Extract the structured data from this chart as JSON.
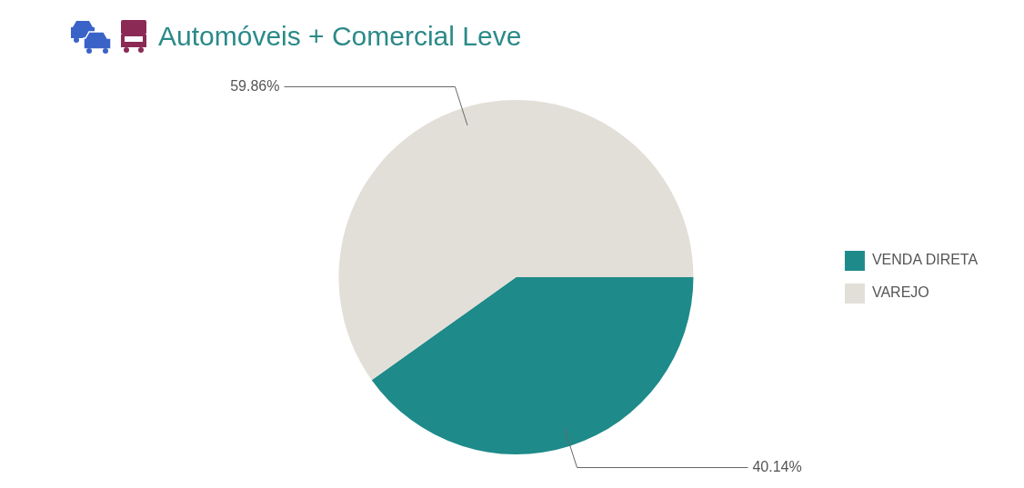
{
  "chart_data": {
    "type": "pie",
    "title": "Automóveis + Comercial Leve",
    "categories": [
      "VENDA DIRETA",
      "VAREJO"
    ],
    "values": [
      40.14,
      59.86
    ],
    "value_labels": [
      "40.14%",
      "59.86%"
    ],
    "colors": [
      "#1f8a8a",
      "#e2dfd8"
    ],
    "legend": "right"
  }
}
